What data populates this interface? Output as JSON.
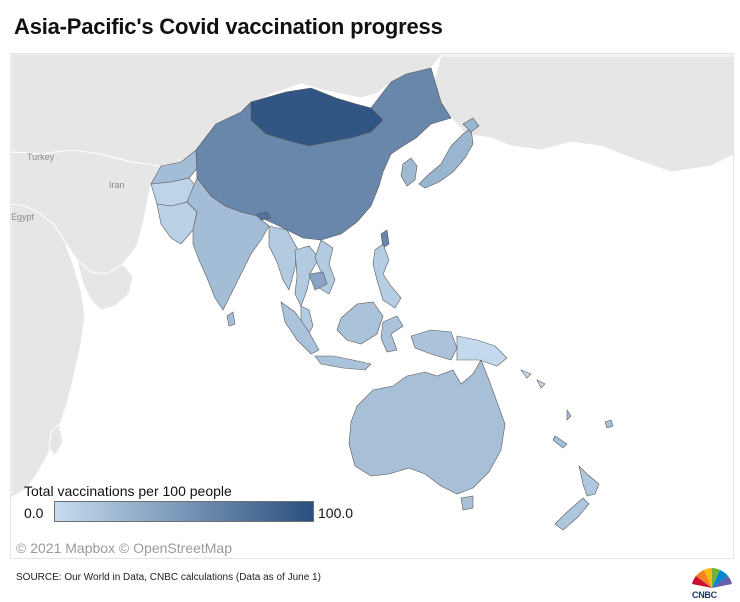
{
  "title": "Asia-Pacific's Covid vaccination progress",
  "map": {
    "base_labels": {
      "turkey": "Turkey",
      "iran": "Iran",
      "egypt": "Egypt"
    },
    "colors": {
      "background_land": "#e6e6e6",
      "ocean": "#ffffff",
      "border": "#5a5a5a",
      "scale_low": "#c6dcef",
      "scale_high": "#2a4f7e"
    },
    "regions": [
      {
        "name": "Mongolia",
        "level": 0.95
      },
      {
        "name": "China",
        "level": 0.6
      },
      {
        "name": "Japan",
        "level": 0.28
      },
      {
        "name": "South Korea",
        "level": 0.25
      },
      {
        "name": "India",
        "level": 0.22
      },
      {
        "name": "Kazakhstan",
        "level": 0.22
      },
      {
        "name": "Afghanistan",
        "level": 0.05
      },
      {
        "name": "Pakistan",
        "level": 0.08
      },
      {
        "name": "Bhutan",
        "level": 0.75
      },
      {
        "name": "Cambodia",
        "level": 0.4
      },
      {
        "name": "Southeast Asia",
        "level": 0.12
      },
      {
        "name": "Indonesia",
        "level": 0.18
      },
      {
        "name": "Philippines",
        "level": 0.1
      },
      {
        "name": "Papua New Guinea",
        "level": 0.02
      },
      {
        "name": "Australia",
        "level": 0.2
      },
      {
        "name": "New Zealand",
        "level": 0.15
      }
    ]
  },
  "legend": {
    "title": "Total vaccinations per 100 people",
    "min_label": "0.0",
    "max_label": "100.0"
  },
  "attribution": "© 2021 Mapbox © OpenStreetMap",
  "source": "SOURCE: Our World in Data, CNBC calculations (Data as of June 1)",
  "brand": "CNBC"
}
